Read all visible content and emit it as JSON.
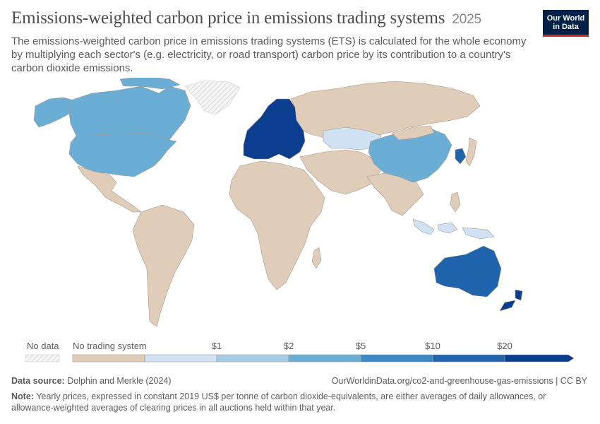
{
  "header": {
    "title": "Emissions-weighted carbon price in emissions trading systems",
    "year": "2025",
    "subtitle": "The emissions-weighted carbon price in emissions trading systems (ETS) is calculated for the whole economy by multiplying each sector's (e.g. electricity, or road transport) carbon price by its contribution to a country's carbon dioxide emissions."
  },
  "logo": {
    "line1": "Our World",
    "line2": "in Data"
  },
  "legend": {
    "no_data": "No data",
    "no_trading": "No trading system",
    "ticks": [
      "$1",
      "$2",
      "$5",
      "$10",
      "$20"
    ],
    "colors": {
      "no_trading": "#dfcdb9",
      "bins": [
        "#cfe1f2",
        "#a5cce6",
        "#6aaed6",
        "#3a88c5",
        "#1f64ad",
        "#0b3e8f"
      ]
    }
  },
  "map_colors": {
    "background_land": "#dfcdb9",
    "no_data": "#f2f2f2",
    "borders": "#a8998a"
  },
  "regions": [
    {
      "name": "Canada",
      "bin": 2
    },
    {
      "name": "United States",
      "bin": 2
    },
    {
      "name": "European Union",
      "bin": 5
    },
    {
      "name": "Kazakhstan",
      "bin": 0
    },
    {
      "name": "China",
      "bin": 2
    },
    {
      "name": "South Korea",
      "bin": 4
    },
    {
      "name": "Indonesia",
      "bin": 0
    },
    {
      "name": "Australia",
      "bin": 4
    },
    {
      "name": "New Zealand",
      "bin": 5
    }
  ],
  "footer": {
    "source_label": "Data source:",
    "source": "Dolphin and Merkle (2024)",
    "url": "OurWorldinData.org/co2-and-greenhouse-gas-emissions | CC BY",
    "note_label": "Note:",
    "note": "Yearly prices, expressed in constant 2019 US$ per tonne of carbon dioxide-equivalents, are either averages of daily allowances, or allowance-weighted averages of clearing prices in all auctions held within that year."
  }
}
